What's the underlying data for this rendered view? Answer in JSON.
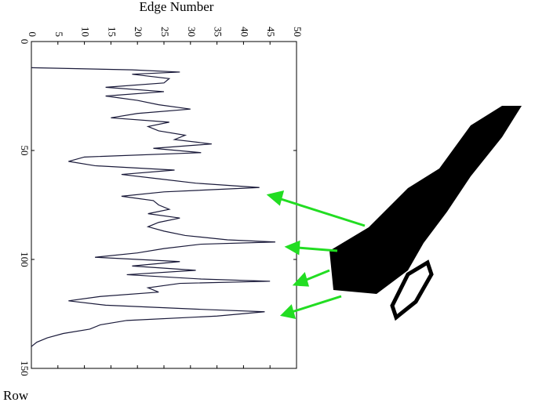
{
  "chart_data": {
    "type": "line",
    "y_label": "Edge Number",
    "x_label": "Row",
    "x": [
      12,
      13,
      14,
      15,
      17,
      19,
      21,
      23,
      25,
      27,
      29,
      31,
      33,
      35,
      37,
      39,
      41,
      43,
      45,
      47,
      49,
      51,
      53,
      55,
      57,
      59,
      61,
      63,
      65,
      67,
      69,
      71,
      73,
      75,
      77,
      79,
      81,
      83,
      85,
      87,
      89,
      91,
      92,
      93,
      95,
      97,
      99,
      101,
      103,
      105,
      107,
      109,
      110,
      111,
      113,
      115,
      117,
      119,
      121,
      123,
      124,
      126,
      128,
      130,
      132,
      134,
      136,
      138,
      140
    ],
    "series": [
      {
        "color": "#1a1a3a",
        "values": [
          0,
          19,
          28,
          19,
          26,
          25,
          14,
          25,
          14,
          20,
          24,
          30,
          20,
          15,
          26,
          22,
          24,
          29,
          27,
          34,
          23,
          32,
          10,
          7,
          12,
          27,
          17,
          24,
          31,
          43,
          25,
          17,
          23,
          24,
          26,
          22,
          28,
          24,
          22,
          25,
          29,
          37,
          46,
          32,
          25,
          20,
          12,
          28,
          19,
          31,
          18,
          32,
          45,
          28,
          22,
          24,
          13,
          7,
          14,
          33,
          44,
          35,
          18,
          13,
          11,
          6,
          3,
          1,
          0
        ]
      }
    ],
    "xlim": [
      0,
      150
    ],
    "xticks": [
      0,
      50,
      100,
      150
    ],
    "ylim": [
      0,
      50
    ],
    "yticks": [
      0,
      5,
      10,
      15,
      20,
      25,
      30,
      35,
      40,
      45,
      50
    ]
  }
}
